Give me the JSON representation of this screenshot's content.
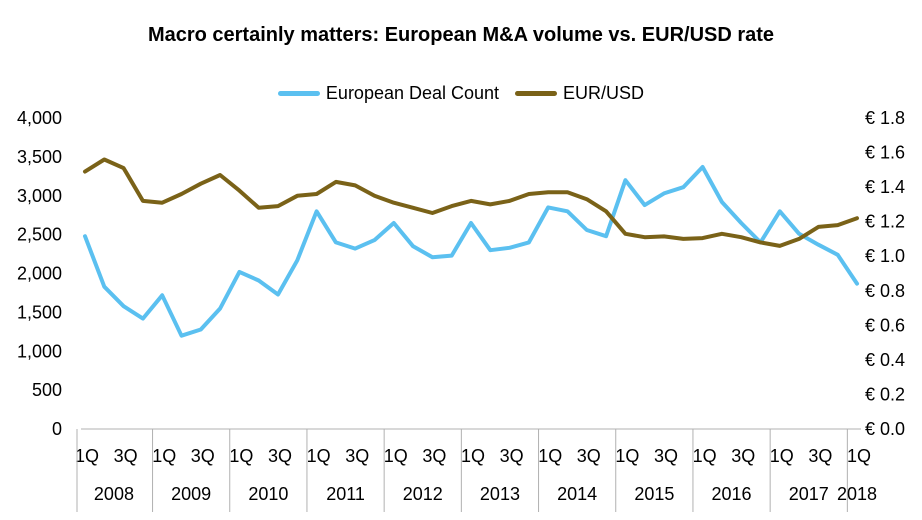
{
  "chart_data": {
    "type": "line",
    "title": "Macro certainly matters: European M&A volume vs. EUR/USD rate",
    "legend_position": "top",
    "grid": false,
    "x": [
      "2008 1Q",
      "2008 2Q",
      "2008 3Q",
      "2008 4Q",
      "2009 1Q",
      "2009 2Q",
      "2009 3Q",
      "2009 4Q",
      "2010 1Q",
      "2010 2Q",
      "2010 3Q",
      "2010 4Q",
      "2011 1Q",
      "2011 2Q",
      "2011 3Q",
      "2011 4Q",
      "2012 1Q",
      "2012 2Q",
      "2012 3Q",
      "2012 4Q",
      "2013 1Q",
      "2013 2Q",
      "2013 3Q",
      "2013 4Q",
      "2014 1Q",
      "2014 2Q",
      "2014 3Q",
      "2014 4Q",
      "2015 1Q",
      "2015 2Q",
      "2015 3Q",
      "2015 4Q",
      "2016 1Q",
      "2016 2Q",
      "2016 3Q",
      "2016 4Q",
      "2017 1Q",
      "2017 2Q",
      "2017 3Q",
      "2017 4Q",
      "2018 1Q"
    ],
    "x_quarter_labels": [
      "1Q",
      "3Q",
      "1Q",
      "3Q",
      "1Q",
      "3Q",
      "1Q",
      "3Q",
      "1Q",
      "3Q",
      "1Q",
      "3Q",
      "1Q",
      "3Q",
      "1Q",
      "3Q",
      "1Q",
      "3Q",
      "1Q",
      "3Q",
      "1Q"
    ],
    "years": [
      "2008",
      "2009",
      "2010",
      "2011",
      "2012",
      "2013",
      "2014",
      "2015",
      "2016",
      "2017",
      "2018"
    ],
    "y_left": {
      "ticks": [
        "0",
        "500",
        "1,000",
        "1,500",
        "2,000",
        "2,500",
        "3,000",
        "3,500",
        "4,000"
      ],
      "ylim": [
        0,
        4000
      ]
    },
    "y_right": {
      "ticks": [
        "€ 0.0",
        "€ 0.2",
        "€ 0.4",
        "€ 0.6",
        "€ 0.8",
        "€ 1.0",
        "€ 1.2",
        "€ 1.4",
        "€ 1.6",
        "€ 1.8"
      ],
      "ylim": [
        0,
        1.8
      ]
    },
    "series": [
      {
        "name": "European Deal Count",
        "axis": "left",
        "color": "#5bc0f0",
        "values": [
          2480,
          1830,
          1580,
          1420,
          1720,
          1200,
          1280,
          1550,
          2020,
          1910,
          1730,
          2170,
          2800,
          2400,
          2320,
          2430,
          2650,
          2350,
          2210,
          2230,
          2650,
          2300,
          2330,
          2400,
          2850,
          2800,
          2560,
          2480,
          3200,
          2880,
          3030,
          3110,
          3370,
          2920,
          2650,
          2400,
          2800,
          2510,
          2370,
          2240,
          1870
        ]
      },
      {
        "name": "EUR/USD",
        "axis": "right",
        "color": "#7a6218",
        "values": [
          1.49,
          1.56,
          1.51,
          1.32,
          1.31,
          1.36,
          1.42,
          1.47,
          1.38,
          1.28,
          1.29,
          1.35,
          1.36,
          1.43,
          1.41,
          1.35,
          1.31,
          1.28,
          1.25,
          1.29,
          1.32,
          1.3,
          1.32,
          1.36,
          1.37,
          1.37,
          1.33,
          1.26,
          1.13,
          1.11,
          1.115,
          1.1,
          1.105,
          1.13,
          1.11,
          1.08,
          1.06,
          1.1,
          1.17,
          1.18,
          1.22
        ]
      }
    ]
  }
}
